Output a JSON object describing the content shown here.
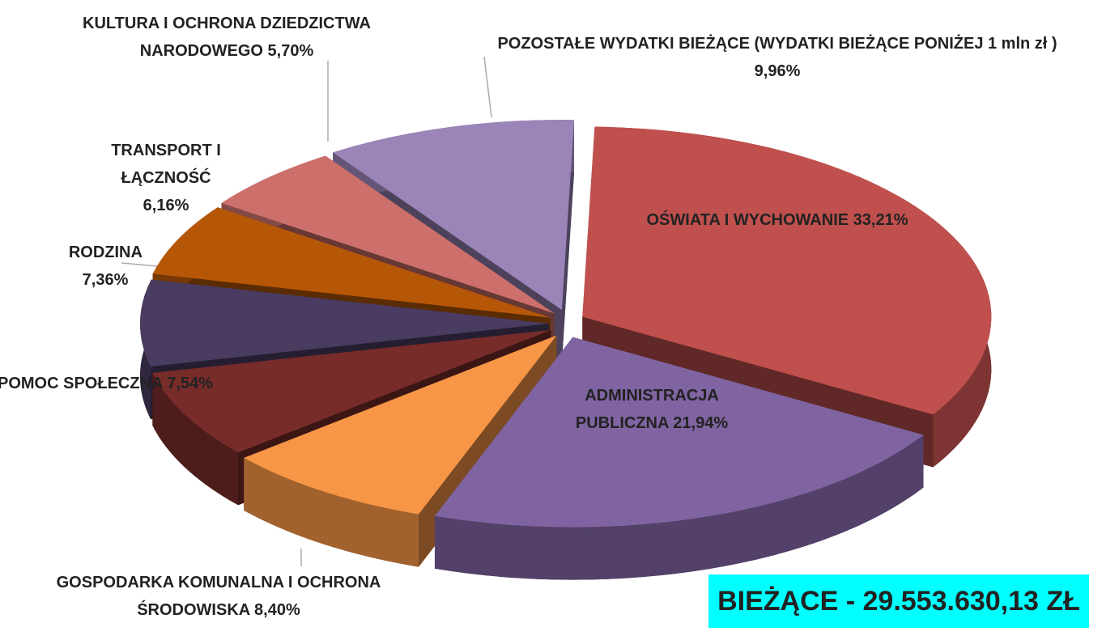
{
  "chart_data": {
    "type": "pie",
    "categories": [
      "OŚWIATA I WYCHOWANIE",
      "ADMINISTRACJA PUBLICZNA",
      "GOSPODARKA KOMUNALNA I OCHRONA ŚRODOWISKA",
      "POMOC SPOŁECZNA",
      "RODZINA",
      "TRANSPORT I ŁĄCZNOŚĆ",
      "KULTURA I OCHRONA DZIEDZICTWA NARODOWEGO",
      "POZOSTAŁE WYDATKI BIEŻĄCE (WYDATKI BIEŻĄCE PONIŻEJ 1 mln zł )"
    ],
    "values": [
      33.21,
      21.94,
      8.4,
      7.54,
      7.36,
      6.16,
      5.7,
      9.96
    ],
    "value_labels": [
      "33,21%",
      "21,94%",
      "8,40%",
      "7,54%",
      "7,36%",
      "6,16%",
      "5,70%",
      "9,96%"
    ],
    "colors": [
      "#c0504d",
      "#8064a2",
      "#f79646",
      "#772c2a",
      "#4a3c61",
      "#b65708",
      "#cd706c",
      "#9a84b8"
    ],
    "annotation": "BIEŻĄCE - 29.553.630,13 ZŁ"
  }
}
